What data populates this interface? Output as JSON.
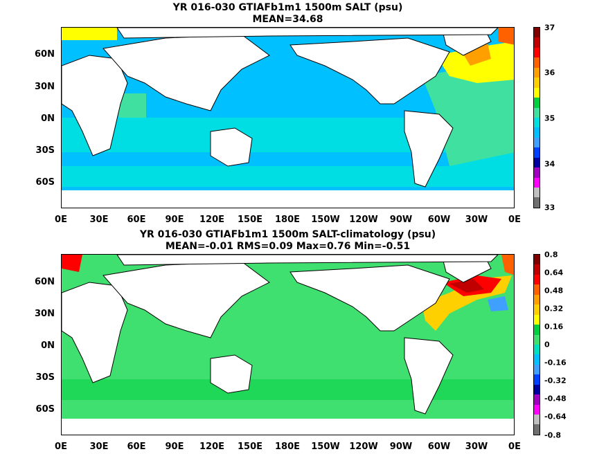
{
  "panel_top": {
    "title_line1": "YR 016-030 GTIAFb1m1 1500m SALT (psu)",
    "title_line2": "MEAN=34.68",
    "colorbar_labels": [
      "37",
      "36",
      "35",
      "34",
      "33"
    ],
    "colors": [
      "#800000",
      "#c00000",
      "#ff0000",
      "#ff6000",
      "#ffa000",
      "#ffd000",
      "#ffff00",
      "#00d040",
      "#40e0a0",
      "#00e0e0",
      "#00c0ff",
      "#40a0ff",
      "#0040ff",
      "#0000a0",
      "#a000c0",
      "#ff00ff",
      "#c0c0c0",
      "#707070"
    ]
  },
  "panel_bottom": {
    "title_line1": "YR 016-030 GTIAFb1m1 1500m SALT-climatology (psu)",
    "title_line2": "MEAN=-0.01   RMS=0.09   Max=0.76   Min=-0.51",
    "colorbar_labels": [
      "0.8",
      "0.64",
      "0.48",
      "0.32",
      "0.16",
      "0",
      "-0.16",
      "-0.32",
      "-0.48",
      "-0.64",
      "-0.8"
    ],
    "colors": [
      "#800000",
      "#c00000",
      "#ff0000",
      "#ff6000",
      "#ffa000",
      "#ffd000",
      "#ffff00",
      "#00d040",
      "#40e070",
      "#00e0c0",
      "#00c0ff",
      "#40a0ff",
      "#0040ff",
      "#0000a0",
      "#a000c0",
      "#ff00ff",
      "#c0c0c0",
      "#707070"
    ]
  },
  "lat_labels": [
    "60N",
    "30N",
    "0N",
    "30S",
    "60S"
  ],
  "lon_labels": [
    "0E",
    "30E",
    "60E",
    "90E",
    "120E",
    "150E",
    "180E",
    "150W",
    "120W",
    "90W",
    "60W",
    "30W",
    "0E"
  ]
}
